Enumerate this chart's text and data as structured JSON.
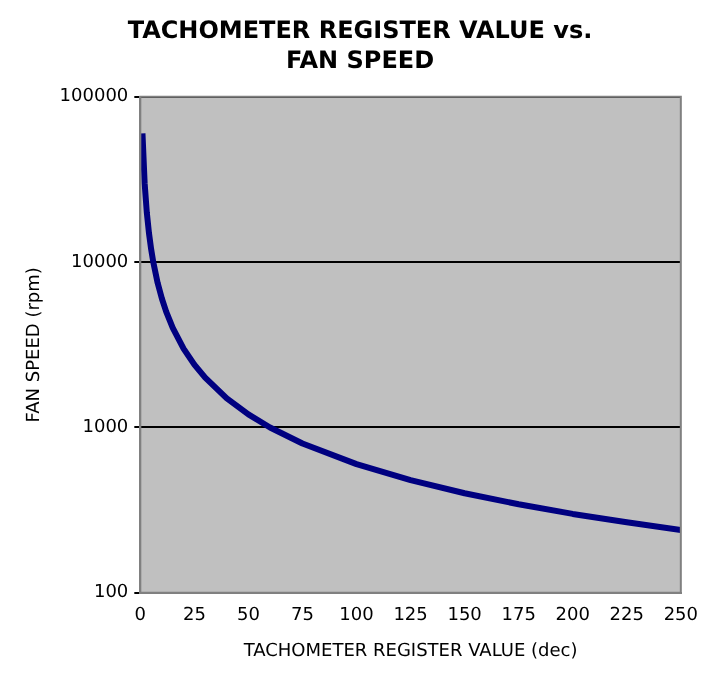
{
  "chart_data": {
    "type": "line",
    "title": "TACHOMETER REGISTER VALUE vs. FAN SPEED",
    "xlabel": "TACHOMETER REGISTER VALUE (dec)",
    "ylabel": "FAN SPEED (rpm)",
    "x": [
      1,
      2,
      3,
      4,
      5,
      6,
      8,
      10,
      12,
      15,
      20,
      25,
      30,
      40,
      50,
      60,
      75,
      100,
      125,
      150,
      175,
      200,
      225,
      250
    ],
    "series": [
      {
        "color": "#000080",
        "values": [
          60000,
          30000,
          20000,
          15000,
          12000,
          10000,
          7500,
          6000,
          5000,
          4000,
          3000,
          2400,
          2000,
          1500,
          1200,
          1000,
          800,
          600,
          480,
          400,
          343,
          300,
          267,
          240
        ]
      }
    ],
    "xlim": [
      0,
      250
    ],
    "xticks": [
      0,
      25,
      50,
      75,
      100,
      125,
      150,
      175,
      200,
      225,
      250
    ],
    "ylim": [
      100,
      100000
    ],
    "yticks": [
      100,
      1000,
      10000,
      100000
    ],
    "log": "y",
    "grid": "y",
    "legend": false,
    "marker": "none",
    "line_style": "solid"
  }
}
